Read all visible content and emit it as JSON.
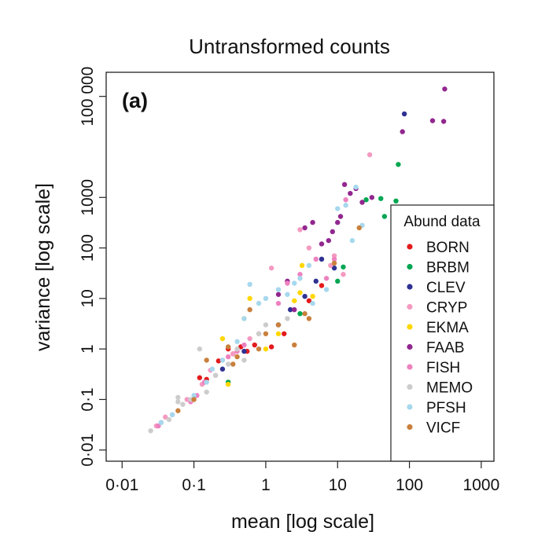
{
  "chart_data": {
    "type": "scatter",
    "title": "Untransformed counts",
    "panel_label": "(a)",
    "xlabel": "mean [log scale]",
    "ylabel": "variance [log scale]",
    "x_scale": "log",
    "y_scale": "log",
    "xlim": [
      0.006,
      1500
    ],
    "ylim": [
      0.006,
      300000
    ],
    "x_ticks": [
      {
        "value": 0.01,
        "label": "0·01"
      },
      {
        "value": 0.1,
        "label": "0·1"
      },
      {
        "value": 1,
        "label": "1"
      },
      {
        "value": 10,
        "label": "10"
      },
      {
        "value": 100,
        "label": "100"
      },
      {
        "value": 1000,
        "label": "1000"
      }
    ],
    "y_ticks": [
      {
        "value": 0.01,
        "label": "0·01"
      },
      {
        "value": 0.1,
        "label": "0·1"
      },
      {
        "value": 1,
        "label": "1"
      },
      {
        "value": 10,
        "label": "10"
      },
      {
        "value": 100,
        "label": "100"
      },
      {
        "value": 1000,
        "label": "1000"
      },
      {
        "value": 100000,
        "label": "100 000"
      }
    ],
    "grid": false,
    "legend": {
      "title": "Abund data",
      "position": "bottom-right"
    },
    "series": [
      {
        "name": "BORN",
        "color": "#e41a1c",
        "points": [
          [
            0.12,
            0.27
          ],
          [
            0.15,
            0.25
          ],
          [
            0.22,
            0.58
          ],
          [
            0.3,
            1.0
          ],
          [
            0.35,
            0.8
          ],
          [
            0.45,
            1.1
          ],
          [
            0.55,
            0.9
          ],
          [
            0.7,
            1.2
          ],
          [
            1.2,
            1.1
          ],
          [
            1.8,
            2.0
          ],
          [
            4.0,
            9.0
          ],
          [
            6.0,
            18.0
          ]
        ]
      },
      {
        "name": "BRBM",
        "color": "#00a651",
        "points": [
          [
            0.3,
            0.22
          ],
          [
            3.0,
            5.0
          ],
          [
            10.0,
            22.0
          ],
          [
            12.0,
            42.0
          ],
          [
            25.0,
            900.0
          ],
          [
            40.0,
            950.0
          ],
          [
            45.0,
            420.0
          ],
          [
            65.0,
            850.0
          ],
          [
            70.0,
            4500.0
          ]
        ]
      },
      {
        "name": "CLEV",
        "color": "#2e3192",
        "points": [
          [
            0.25,
            0.4
          ],
          [
            0.5,
            0.9
          ],
          [
            1.5,
            3.0
          ],
          [
            2.2,
            6.0
          ],
          [
            3.5,
            11.0
          ],
          [
            5.0,
            22.0
          ],
          [
            6.0,
            60.0
          ],
          [
            9.0,
            40.0
          ],
          [
            85.0,
            45000.0
          ]
        ]
      },
      {
        "name": "CRYP",
        "color": "#f49ac1",
        "points": [
          [
            0.03,
            0.03
          ],
          [
            0.04,
            0.045
          ],
          [
            0.08,
            0.1
          ],
          [
            0.1,
            0.1
          ],
          [
            0.13,
            0.2
          ],
          [
            0.17,
            0.38
          ],
          [
            0.35,
            0.8
          ],
          [
            0.6,
            1.6
          ],
          [
            1.2,
            40.0
          ],
          [
            3.0,
            230.0
          ],
          [
            4.0,
            100.0
          ],
          [
            8.0,
            45.0
          ],
          [
            9.0,
            70.0
          ],
          [
            12.0,
            30.0
          ],
          [
            28.0,
            7000.0
          ]
        ]
      },
      {
        "name": "EKMA",
        "color": "#ffd700",
        "points": [
          [
            0.25,
            1.6
          ],
          [
            0.3,
            0.2
          ],
          [
            0.5,
            4.0
          ],
          [
            0.6,
            10.0
          ],
          [
            1.0,
            1.0
          ],
          [
            1.5,
            2.0
          ],
          [
            2.5,
            9.0
          ],
          [
            3.0,
            13.0
          ],
          [
            3.2,
            45.0
          ],
          [
            4.5,
            11.0
          ]
        ]
      },
      {
        "name": "FAAB",
        "color": "#92278f",
        "points": [
          [
            1.5,
            12.0
          ],
          [
            2.0,
            22.0
          ],
          [
            2.5,
            6.0
          ],
          [
            3.5,
            250.0
          ],
          [
            4.5,
            320.0
          ],
          [
            6.0,
            120.0
          ],
          [
            7.5,
            140.0
          ],
          [
            8.5,
            210.0
          ],
          [
            10.0,
            320.0
          ],
          [
            11.0,
            420.0
          ],
          [
            12.5,
            1800.0
          ],
          [
            15.0,
            1200.0
          ],
          [
            18.0,
            1500.0
          ],
          [
            22.0,
            800.0
          ],
          [
            30.0,
            1000.0
          ],
          [
            80.0,
            20000.0
          ],
          [
            210.0,
            33000.0
          ],
          [
            300.0,
            32000.0
          ],
          [
            310.0,
            140000.0
          ]
        ]
      },
      {
        "name": "FISH",
        "color": "#ee82c0",
        "points": [
          [
            0.032,
            0.03
          ],
          [
            0.05,
            0.05
          ],
          [
            0.09,
            0.09
          ],
          [
            0.11,
            0.12
          ],
          [
            0.14,
            0.22
          ],
          [
            0.2,
            0.3
          ],
          [
            0.25,
            0.6
          ],
          [
            0.3,
            0.7
          ],
          [
            0.4,
            0.9
          ],
          [
            0.5,
            1.2
          ],
          [
            0.8,
            2.0
          ],
          [
            1.5,
            8.0
          ],
          [
            2.0,
            20.0
          ],
          [
            3.0,
            30.0
          ],
          [
            5.0,
            60.0
          ],
          [
            7.0,
            25.0
          ],
          [
            9.0,
            60.0
          ],
          [
            13.0,
            900.0
          ]
        ]
      },
      {
        "name": "MEMO",
        "color": "#cccccc",
        "points": [
          [
            0.025,
            0.024
          ],
          [
            0.035,
            0.035
          ],
          [
            0.045,
            0.04
          ],
          [
            0.06,
            0.09
          ],
          [
            0.06,
            0.11
          ],
          [
            0.07,
            0.08
          ],
          [
            0.09,
            0.1
          ],
          [
            0.12,
            1.0
          ],
          [
            0.15,
            0.14
          ],
          [
            0.2,
            0.3
          ],
          [
            0.3,
            0.5
          ],
          [
            0.4,
            1.0
          ],
          [
            0.5,
            0.6
          ],
          [
            0.8,
            2.0
          ],
          [
            1.0,
            3.0
          ],
          [
            2.0,
            4.0
          ]
        ]
      },
      {
        "name": "PFSH",
        "color": "#a6d8ee",
        "points": [
          [
            0.035,
            0.035
          ],
          [
            0.05,
            0.05
          ],
          [
            0.1,
            0.12
          ],
          [
            0.15,
            0.22
          ],
          [
            0.18,
            0.4
          ],
          [
            0.25,
            0.6
          ],
          [
            0.4,
            1.4
          ],
          [
            0.5,
            4.0
          ],
          [
            0.6,
            19.0
          ],
          [
            0.8,
            8.0
          ],
          [
            1.0,
            10.0
          ],
          [
            1.5,
            15.0
          ],
          [
            2.0,
            12.0
          ],
          [
            2.5,
            20.0
          ],
          [
            3.0,
            25.0
          ],
          [
            4.0,
            45.0
          ],
          [
            4.5,
            8.0
          ],
          [
            7.0,
            15.0
          ],
          [
            10.0,
            600.0
          ],
          [
            13.0,
            700.0
          ],
          [
            16.0,
            140.0
          ],
          [
            18.0,
            1600.0
          ],
          [
            22.0,
            280.0
          ]
        ]
      },
      {
        "name": "VICF",
        "color": "#c9803c",
        "points": [
          [
            0.06,
            0.06
          ],
          [
            0.1,
            0.1
          ],
          [
            0.15,
            0.6
          ],
          [
            0.3,
            1.1
          ],
          [
            0.35,
            0.5
          ],
          [
            0.4,
            0.7
          ],
          [
            0.6,
            6.0
          ],
          [
            0.8,
            1.0
          ],
          [
            1.0,
            2.0
          ],
          [
            1.5,
            3.0
          ],
          [
            2.5,
            1.2
          ],
          [
            3.5,
            5.0
          ],
          [
            4.0,
            4.0
          ],
          [
            9.0,
            50.0
          ],
          [
            20.0,
            250.0
          ]
        ]
      }
    ]
  }
}
